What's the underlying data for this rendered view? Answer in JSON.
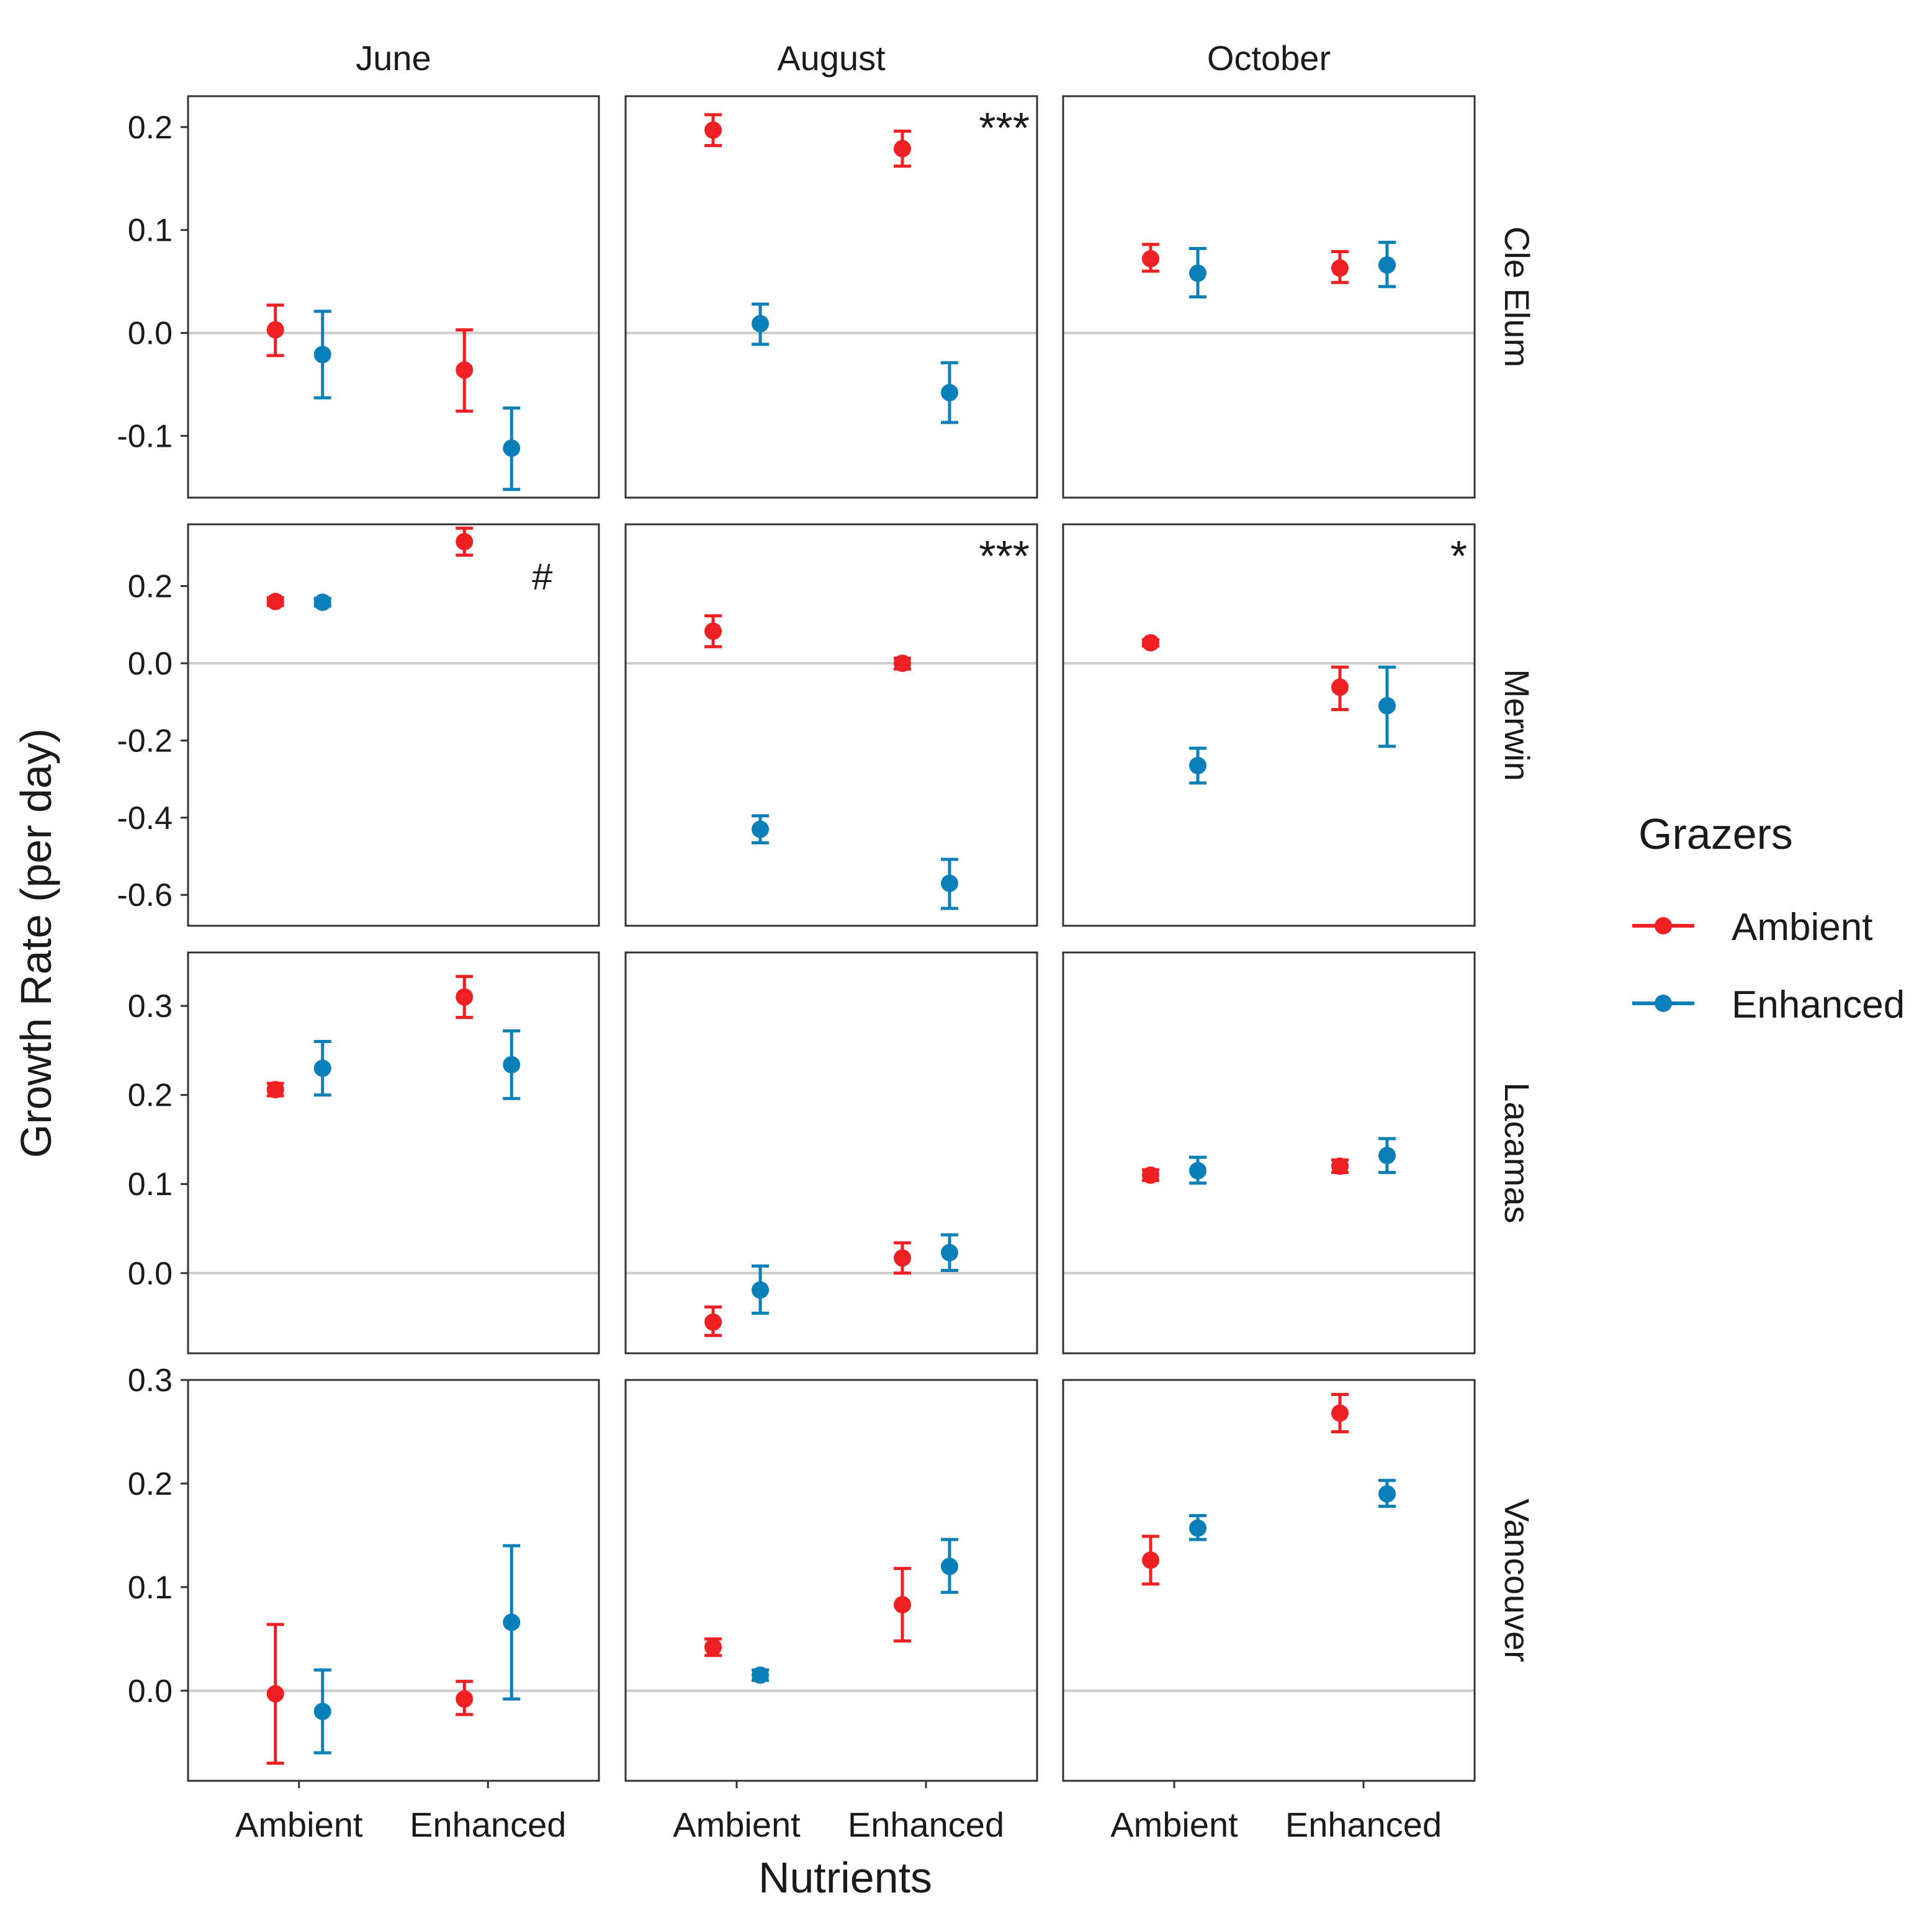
{
  "chart_data": {
    "type": "scatter",
    "subtype": "faceted point-range (mean ± error)",
    "xlabel": "Nutrients",
    "ylabel": "Growth Rate (per day)",
    "categories": [
      "Ambient",
      "Enhanced"
    ],
    "columns": [
      "June",
      "August",
      "October"
    ],
    "legend": {
      "title": "Grazers",
      "position": "right",
      "entries": [
        {
          "name": "Ambient",
          "color": "#ee2024"
        },
        {
          "name": "Enhanced",
          "color": "#0a7fb8"
        }
      ]
    },
    "rows": [
      {
        "label": "Cle Elum",
        "ylim": [
          -0.16,
          0.23
        ],
        "yticks": [
          0.2,
          0.1,
          0.0,
          -0.1
        ],
        "ytick_labels": [
          "0.2",
          "0.1",
          "0.0",
          "-0.1"
        ],
        "panels": [
          {
            "column": "June",
            "annotation": "",
            "series": [
              {
                "name": "Ambient",
                "points": [
                  {
                    "x": "Ambient",
                    "y": 0.003,
                    "low": -0.022,
                    "high": 0.027
                  },
                  {
                    "x": "Enhanced",
                    "y": -0.036,
                    "low": -0.076,
                    "high": 0.003
                  }
                ]
              },
              {
                "name": "Enhanced",
                "points": [
                  {
                    "x": "Ambient",
                    "y": -0.021,
                    "low": -0.063,
                    "high": 0.021
                  },
                  {
                    "x": "Enhanced",
                    "y": -0.112,
                    "low": -0.152,
                    "high": -0.073
                  }
                ]
              }
            ]
          },
          {
            "column": "August",
            "annotation": "***",
            "series": [
              {
                "name": "Ambient",
                "points": [
                  {
                    "x": "Ambient",
                    "y": 0.197,
                    "low": 0.182,
                    "high": 0.212
                  },
                  {
                    "x": "Enhanced",
                    "y": 0.179,
                    "low": 0.162,
                    "high": 0.196
                  }
                ]
              },
              {
                "name": "Enhanced",
                "points": [
                  {
                    "x": "Ambient",
                    "y": 0.009,
                    "low": -0.011,
                    "high": 0.028
                  },
                  {
                    "x": "Enhanced",
                    "y": -0.058,
                    "low": -0.087,
                    "high": -0.029
                  }
                ]
              }
            ]
          },
          {
            "column": "October",
            "annotation": "",
            "series": [
              {
                "name": "Ambient",
                "points": [
                  {
                    "x": "Ambient",
                    "y": 0.072,
                    "low": 0.06,
                    "high": 0.086
                  },
                  {
                    "x": "Enhanced",
                    "y": 0.063,
                    "low": 0.049,
                    "high": 0.079
                  }
                ]
              },
              {
                "name": "Enhanced",
                "points": [
                  {
                    "x": "Ambient",
                    "y": 0.058,
                    "low": 0.035,
                    "high": 0.082
                  },
                  {
                    "x": "Enhanced",
                    "y": 0.066,
                    "low": 0.045,
                    "high": 0.088
                  }
                ]
              }
            ]
          }
        ]
      },
      {
        "label": "Merwin",
        "ylim": [
          -0.68,
          0.36
        ],
        "yticks": [
          0.2,
          0.0,
          -0.2,
          -0.4,
          -0.6
        ],
        "ytick_labels": [
          "0.2",
          "0.0",
          "-0.2",
          "-0.4",
          "-0.6"
        ],
        "panels": [
          {
            "column": "June",
            "annotation": "#",
            "series": [
              {
                "name": "Ambient",
                "points": [
                  {
                    "x": "Ambient",
                    "y": 0.16,
                    "low": 0.15,
                    "high": 0.17
                  },
                  {
                    "x": "Enhanced",
                    "y": 0.315,
                    "low": 0.28,
                    "high": 0.35
                  }
                ]
              },
              {
                "name": "Enhanced",
                "points": [
                  {
                    "x": "Ambient",
                    "y": 0.158,
                    "low": 0.148,
                    "high": 0.168
                  }
                ]
              }
            ]
          },
          {
            "column": "August",
            "annotation": "***",
            "series": [
              {
                "name": "Ambient",
                "points": [
                  {
                    "x": "Ambient",
                    "y": 0.083,
                    "low": 0.043,
                    "high": 0.123
                  },
                  {
                    "x": "Enhanced",
                    "y": 0.0,
                    "low": -0.015,
                    "high": 0.013
                  }
                ]
              },
              {
                "name": "Enhanced",
                "points": [
                  {
                    "x": "Ambient",
                    "y": -0.43,
                    "low": -0.465,
                    "high": -0.395
                  },
                  {
                    "x": "Enhanced",
                    "y": -0.57,
                    "low": -0.635,
                    "high": -0.508
                  }
                ]
              }
            ]
          },
          {
            "column": "October",
            "annotation": "*",
            "series": [
              {
                "name": "Ambient",
                "points": [
                  {
                    "x": "Ambient",
                    "y": 0.053,
                    "low": 0.045,
                    "high": 0.061
                  },
                  {
                    "x": "Enhanced",
                    "y": -0.062,
                    "low": -0.12,
                    "high": -0.01
                  }
                ]
              },
              {
                "name": "Enhanced",
                "points": [
                  {
                    "x": "Ambient",
                    "y": -0.265,
                    "low": -0.31,
                    "high": -0.22
                  },
                  {
                    "x": "Enhanced",
                    "y": -0.11,
                    "low": -0.215,
                    "high": -0.01
                  }
                ]
              }
            ]
          }
        ]
      },
      {
        "label": "Lacamas",
        "ylim": [
          -0.09,
          0.36
        ],
        "yticks": [
          0.3,
          0.2,
          0.1,
          0.0
        ],
        "ytick_labels": [
          "0.3",
          "0.2",
          "0.1",
          "0.0"
        ],
        "panels": [
          {
            "column": "June",
            "annotation": "",
            "series": [
              {
                "name": "Ambient",
                "points": [
                  {
                    "x": "Ambient",
                    "y": 0.206,
                    "low": 0.199,
                    "high": 0.213
                  },
                  {
                    "x": "Enhanced",
                    "y": 0.31,
                    "low": 0.287,
                    "high": 0.333
                  }
                ]
              },
              {
                "name": "Enhanced",
                "points": [
                  {
                    "x": "Ambient",
                    "y": 0.23,
                    "low": 0.2,
                    "high": 0.26
                  },
                  {
                    "x": "Enhanced",
                    "y": 0.234,
                    "low": 0.196,
                    "high": 0.272
                  }
                ]
              }
            ]
          },
          {
            "column": "August",
            "annotation": "",
            "series": [
              {
                "name": "Ambient",
                "points": [
                  {
                    "x": "Ambient",
                    "y": -0.055,
                    "low": -0.07,
                    "high": -0.038
                  },
                  {
                    "x": "Enhanced",
                    "y": 0.017,
                    "low": 0.0,
                    "high": 0.034
                  }
                ]
              },
              {
                "name": "Enhanced",
                "points": [
                  {
                    "x": "Ambient",
                    "y": -0.019,
                    "low": -0.045,
                    "high": 0.008
                  },
                  {
                    "x": "Enhanced",
                    "y": 0.023,
                    "low": 0.003,
                    "high": 0.043
                  }
                ]
              }
            ]
          },
          {
            "column": "October",
            "annotation": "",
            "series": [
              {
                "name": "Ambient",
                "points": [
                  {
                    "x": "Ambient",
                    "y": 0.11,
                    "low": 0.104,
                    "high": 0.116
                  },
                  {
                    "x": "Enhanced",
                    "y": 0.12,
                    "low": 0.113,
                    "high": 0.127
                  }
                ]
              },
              {
                "name": "Enhanced",
                "points": [
                  {
                    "x": "Ambient",
                    "y": 0.115,
                    "low": 0.101,
                    "high": 0.13
                  },
                  {
                    "x": "Enhanced",
                    "y": 0.132,
                    "low": 0.113,
                    "high": 0.151
                  }
                ]
              }
            ]
          }
        ]
      },
      {
        "label": "Vancouver",
        "ylim": [
          -0.087,
          0.3
        ],
        "yticks": [
          0.3,
          0.2,
          0.1,
          0.0
        ],
        "ytick_labels": [
          "0.3",
          "0.2",
          "0.1",
          "0.0"
        ],
        "panels": [
          {
            "column": "June",
            "annotation": "",
            "series": [
              {
                "name": "Ambient",
                "points": [
                  {
                    "x": "Ambient",
                    "y": -0.003,
                    "low": -0.07,
                    "high": 0.064
                  },
                  {
                    "x": "Enhanced",
                    "y": -0.008,
                    "low": -0.023,
                    "high": 0.009
                  }
                ]
              },
              {
                "name": "Enhanced",
                "points": [
                  {
                    "x": "Ambient",
                    "y": -0.02,
                    "low": -0.06,
                    "high": 0.02
                  },
                  {
                    "x": "Enhanced",
                    "y": 0.066,
                    "low": -0.008,
                    "high": 0.14
                  }
                ]
              }
            ]
          },
          {
            "column": "August",
            "annotation": "",
            "series": [
              {
                "name": "Ambient",
                "points": [
                  {
                    "x": "Ambient",
                    "y": 0.042,
                    "low": 0.034,
                    "high": 0.05
                  },
                  {
                    "x": "Enhanced",
                    "y": 0.083,
                    "low": 0.048,
                    "high": 0.118
                  }
                ]
              },
              {
                "name": "Enhanced",
                "points": [
                  {
                    "x": "Ambient",
                    "y": 0.015,
                    "low": 0.01,
                    "high": 0.02
                  },
                  {
                    "x": "Enhanced",
                    "y": 0.12,
                    "low": 0.095,
                    "high": 0.146
                  }
                ]
              }
            ]
          },
          {
            "column": "October",
            "annotation": "",
            "series": [
              {
                "name": "Ambient",
                "points": [
                  {
                    "x": "Ambient",
                    "y": 0.126,
                    "low": 0.103,
                    "high": 0.149
                  },
                  {
                    "x": "Enhanced",
                    "y": 0.268,
                    "low": 0.25,
                    "high": 0.286
                  }
                ]
              },
              {
                "name": "Enhanced",
                "points": [
                  {
                    "x": "Ambient",
                    "y": 0.157,
                    "low": 0.146,
                    "high": 0.169
                  },
                  {
                    "x": "Enhanced",
                    "y": 0.19,
                    "low": 0.178,
                    "high": 0.203
                  }
                ]
              }
            ]
          }
        ]
      }
    ]
  }
}
